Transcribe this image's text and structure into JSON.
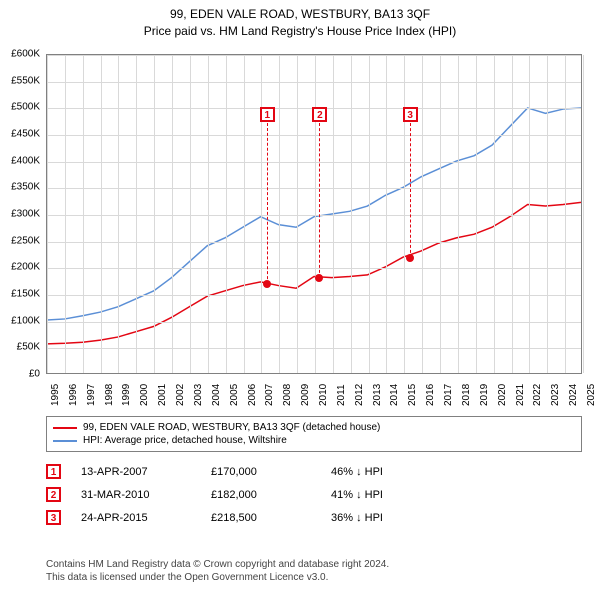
{
  "title_line1": "99, EDEN VALE ROAD, WESTBURY, BA13 3QF",
  "title_line2": "Price paid vs. HM Land Registry's House Price Index (HPI)",
  "chart": {
    "type": "line",
    "ylim": [
      0,
      600000
    ],
    "ytick_step": 50000,
    "y_labels": [
      "£0",
      "£50K",
      "£100K",
      "£150K",
      "£200K",
      "£250K",
      "£300K",
      "£350K",
      "£400K",
      "£450K",
      "£500K",
      "£550K",
      "£600K"
    ],
    "x_years": [
      1995,
      1996,
      1997,
      1998,
      1999,
      2000,
      2001,
      2002,
      2003,
      2004,
      2005,
      2006,
      2007,
      2008,
      2009,
      2010,
      2011,
      2012,
      2013,
      2014,
      2015,
      2016,
      2017,
      2018,
      2019,
      2020,
      2021,
      2022,
      2023,
      2024,
      2025
    ],
    "background_color": "#ffffff",
    "grid_color": "#d9d9d9",
    "border_color": "#808080",
    "series": [
      {
        "name": "property",
        "label": "99, EDEN VALE ROAD, WESTBURY, BA13 3QF (detached house)",
        "color": "#e30613",
        "line_width": 1.5,
        "data": [
          [
            1995,
            55000
          ],
          [
            1996,
            56000
          ],
          [
            1997,
            58000
          ],
          [
            1998,
            62000
          ],
          [
            1999,
            68000
          ],
          [
            2000,
            78000
          ],
          [
            2001,
            88000
          ],
          [
            2002,
            105000
          ],
          [
            2003,
            125000
          ],
          [
            2004,
            145000
          ],
          [
            2005,
            155000
          ],
          [
            2006,
            165000
          ],
          [
            2007,
            172000
          ],
          [
            2008,
            165000
          ],
          [
            2009,
            160000
          ],
          [
            2010,
            182000
          ],
          [
            2011,
            180000
          ],
          [
            2012,
            182000
          ],
          [
            2013,
            185000
          ],
          [
            2014,
            200000
          ],
          [
            2015,
            218500
          ],
          [
            2016,
            230000
          ],
          [
            2017,
            245000
          ],
          [
            2018,
            255000
          ],
          [
            2019,
            262000
          ],
          [
            2020,
            275000
          ],
          [
            2021,
            295000
          ],
          [
            2022,
            318000
          ],
          [
            2023,
            315000
          ],
          [
            2024,
            318000
          ],
          [
            2025,
            322000
          ]
        ]
      },
      {
        "name": "hpi",
        "label": "HPI: Average price, detached house, Wiltshire",
        "color": "#5b8fd6",
        "line_width": 1.5,
        "data": [
          [
            1995,
            100000
          ],
          [
            1996,
            102000
          ],
          [
            1997,
            108000
          ],
          [
            1998,
            115000
          ],
          [
            1999,
            125000
          ],
          [
            2000,
            140000
          ],
          [
            2001,
            155000
          ],
          [
            2002,
            180000
          ],
          [
            2003,
            210000
          ],
          [
            2004,
            240000
          ],
          [
            2005,
            255000
          ],
          [
            2006,
            275000
          ],
          [
            2007,
            295000
          ],
          [
            2008,
            280000
          ],
          [
            2009,
            275000
          ],
          [
            2010,
            295000
          ],
          [
            2011,
            300000
          ],
          [
            2012,
            305000
          ],
          [
            2013,
            315000
          ],
          [
            2014,
            335000
          ],
          [
            2015,
            350000
          ],
          [
            2016,
            370000
          ],
          [
            2017,
            385000
          ],
          [
            2018,
            400000
          ],
          [
            2019,
            410000
          ],
          [
            2020,
            430000
          ],
          [
            2021,
            465000
          ],
          [
            2022,
            500000
          ],
          [
            2023,
            490000
          ],
          [
            2024,
            498000
          ],
          [
            2025,
            500000
          ]
        ]
      }
    ],
    "sale_markers": [
      {
        "n": "1",
        "year": 2007.3,
        "price": 170000
      },
      {
        "n": "2",
        "year": 2010.25,
        "price": 182000
      },
      {
        "n": "3",
        "year": 2015.3,
        "price": 218500
      }
    ],
    "marker_top_y": 60
  },
  "legend": {
    "items": [
      {
        "color": "#e30613",
        "label": "99, EDEN VALE ROAD, WESTBURY, BA13 3QF (detached house)"
      },
      {
        "color": "#5b8fd6",
        "label": "HPI: Average price, detached house, Wiltshire"
      }
    ]
  },
  "sales": [
    {
      "n": "1",
      "date": "13-APR-2007",
      "price": "£170,000",
      "delta": "46% ↓ HPI"
    },
    {
      "n": "2",
      "date": "31-MAR-2010",
      "price": "£182,000",
      "delta": "41% ↓ HPI"
    },
    {
      "n": "3",
      "date": "24-APR-2015",
      "price": "£218,500",
      "delta": "36% ↓ HPI"
    }
  ],
  "footer_line1": "Contains HM Land Registry data © Crown copyright and database right 2024.",
  "footer_line2": "This data is licensed under the Open Government Licence v3.0.",
  "colors": {
    "marker_border": "#e30613",
    "point_fill": "#e30613"
  }
}
